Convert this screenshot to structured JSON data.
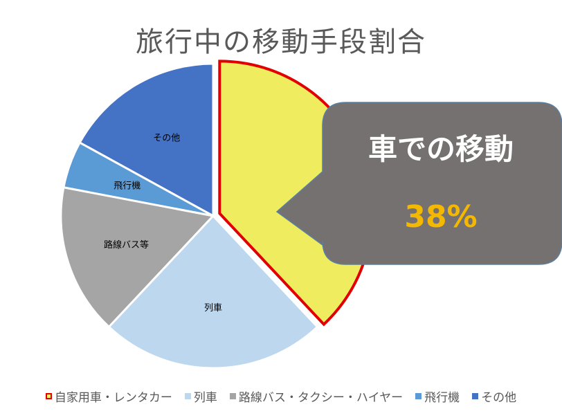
{
  "chart_data": {
    "type": "pie",
    "title": "旅行中の移動手段割合",
    "slices": [
      {
        "label": "自家用車・レンタカー",
        "value": 38,
        "color": "#F0EC5F",
        "highlight": true,
        "show_label": false
      },
      {
        "label": "列車",
        "value": 24,
        "color": "#BDD7EE",
        "highlight": false,
        "show_label": true
      },
      {
        "label": "路線バス・タクシー・ハイヤー",
        "value": 16,
        "color": "#A5A5A5",
        "highlight": false,
        "show_label": true,
        "display_label": "路線バス等"
      },
      {
        "label": "飛行機",
        "value": 5,
        "color": "#5B9BD5",
        "highlight": false,
        "show_label": true
      },
      {
        "label": "その他",
        "value": 17,
        "color": "#4472C4",
        "highlight": false,
        "show_label": true
      }
    ],
    "legend_position": "bottom",
    "callout": {
      "title": "車での移動",
      "value": "38%",
      "box_color": "#767171",
      "title_color": "#FFFFFF",
      "value_color": "#F5B800"
    }
  }
}
